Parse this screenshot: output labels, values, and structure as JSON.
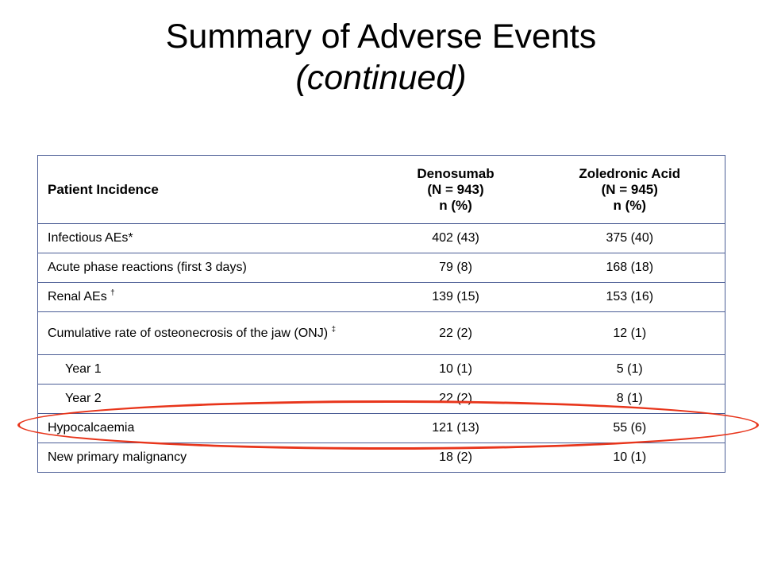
{
  "title": {
    "line1": "Summary of Adverse Events",
    "line2": "(continued)"
  },
  "table": {
    "headers": {
      "col1": "Patient Incidence",
      "col2_line1": "Denosumab",
      "col2_line2": "(N = 943)",
      "col2_line3": "n (%)",
      "col3_line1": "Zoledronic Acid",
      "col3_line2": "(N = 945)",
      "col3_line3": "n (%)"
    },
    "rows": [
      {
        "label": "Infectious AEs*",
        "sup": "",
        "denosumab": "402 (43)",
        "zoledronic": "375 (40)"
      },
      {
        "label": "Acute phase reactions (first 3 days)",
        "sup": "",
        "denosumab": "79 (8)",
        "zoledronic": "168 (18)"
      },
      {
        "label": "Renal AEs",
        "sup": "†",
        "denosumab": "139 (15)",
        "zoledronic": "153 (16)"
      },
      {
        "label": "Cumulative rate of osteonecrosis of the jaw (ONJ)",
        "sup": "‡",
        "denosumab": "22 (2)",
        "zoledronic": "12 (1)"
      },
      {
        "label": "Year 1",
        "sup": "",
        "denosumab": "10 (1)",
        "zoledronic": "5 (1)"
      },
      {
        "label": "Year 2",
        "sup": "",
        "denosumab": "22 (2)",
        "zoledronic": "8 (1)"
      },
      {
        "label": "Hypocalcaemia",
        "sup": "",
        "denosumab": "121 (13)",
        "zoledronic": "55 (6)"
      },
      {
        "label": "New primary malignancy",
        "sup": "",
        "denosumab": "18 (2)",
        "zoledronic": "10 (1)"
      }
    ]
  },
  "highlight": {
    "color": "#e8351b",
    "target_row": "Hypocalcaemia"
  },
  "colors": {
    "table_border": "#4b5d95"
  }
}
